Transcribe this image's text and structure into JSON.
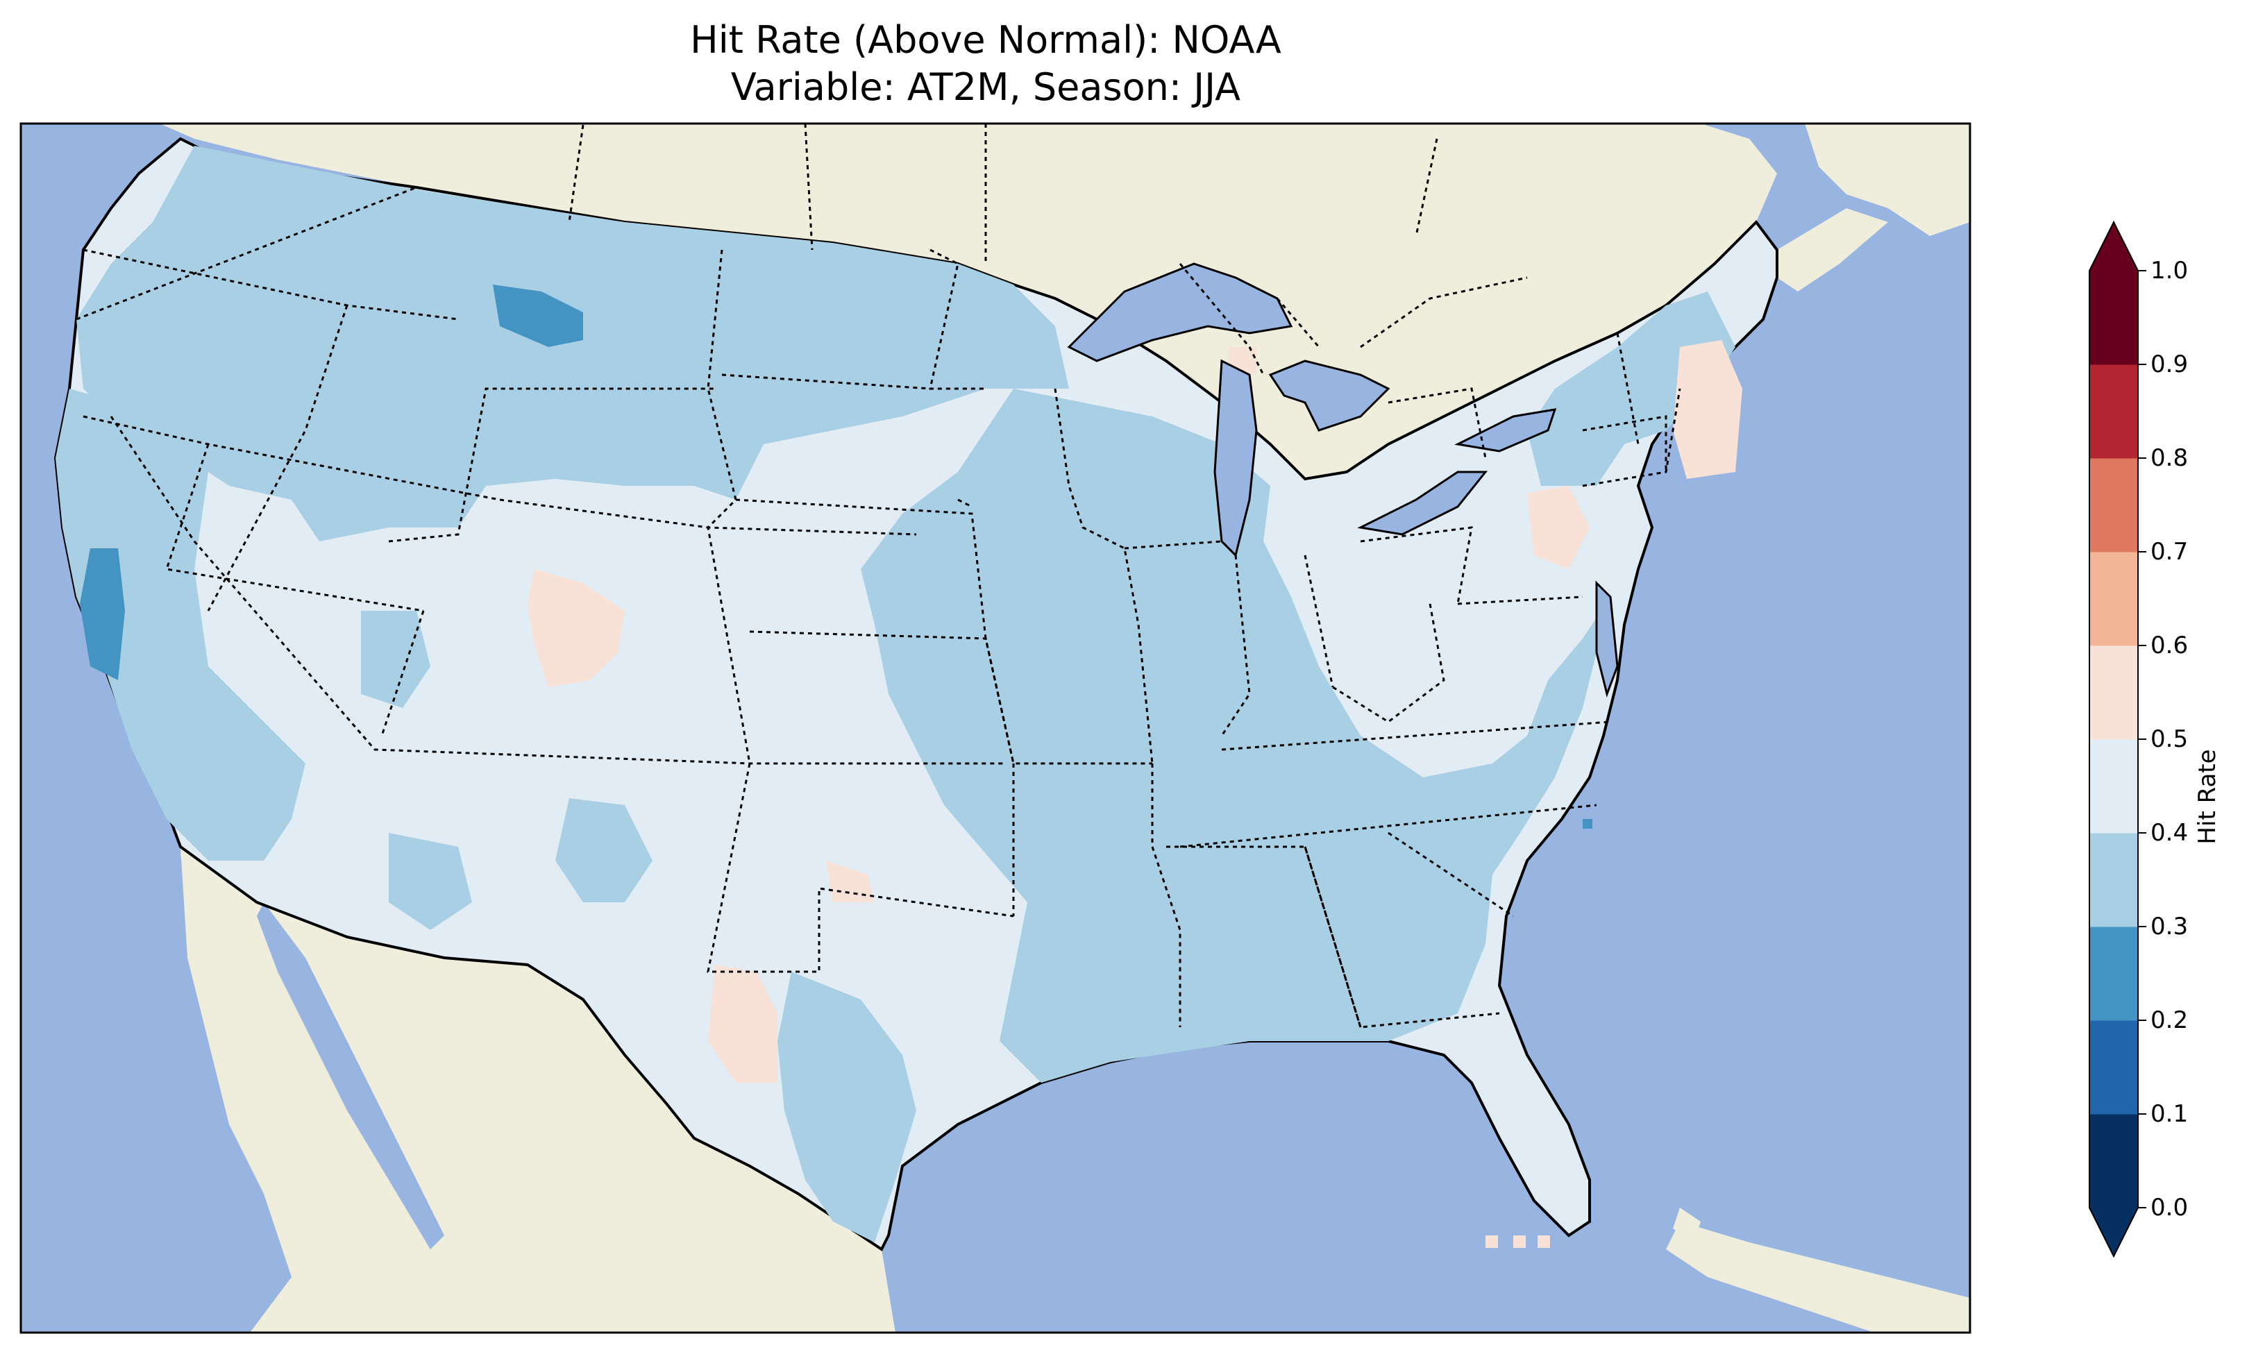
{
  "title": {
    "line1": "Hit Rate (Above Normal): NOAA",
    "line2": "Variable: AT2M, Season: JJA"
  },
  "colors": {
    "ocean": "#98b4e0",
    "land": "#efeedd",
    "lake": "#98b4e0",
    "level_0_1": "#053061",
    "level_1_2": "#2166ac",
    "level_2_3": "#4393c3",
    "level_3_4": "#a8cfe3",
    "level_4_5": "#e1ecf4",
    "level_5_6": "#f8e2d8",
    "level_6_7": "#f4b596",
    "level_7_8": "#e07761",
    "level_8_9": "#b42532",
    "level_9_10": "#67001f"
  },
  "colorbar": {
    "label": "Hit Rate",
    "ticks": [
      "0.0",
      "0.1",
      "0.2",
      "0.3",
      "0.4",
      "0.5",
      "0.6",
      "0.7",
      "0.8",
      "0.9",
      "1.0"
    ],
    "levels": [
      0.0,
      0.1,
      0.2,
      0.3,
      0.4,
      0.5,
      0.6,
      0.7,
      0.8,
      0.9,
      1.0
    ],
    "extend": "both"
  }
}
